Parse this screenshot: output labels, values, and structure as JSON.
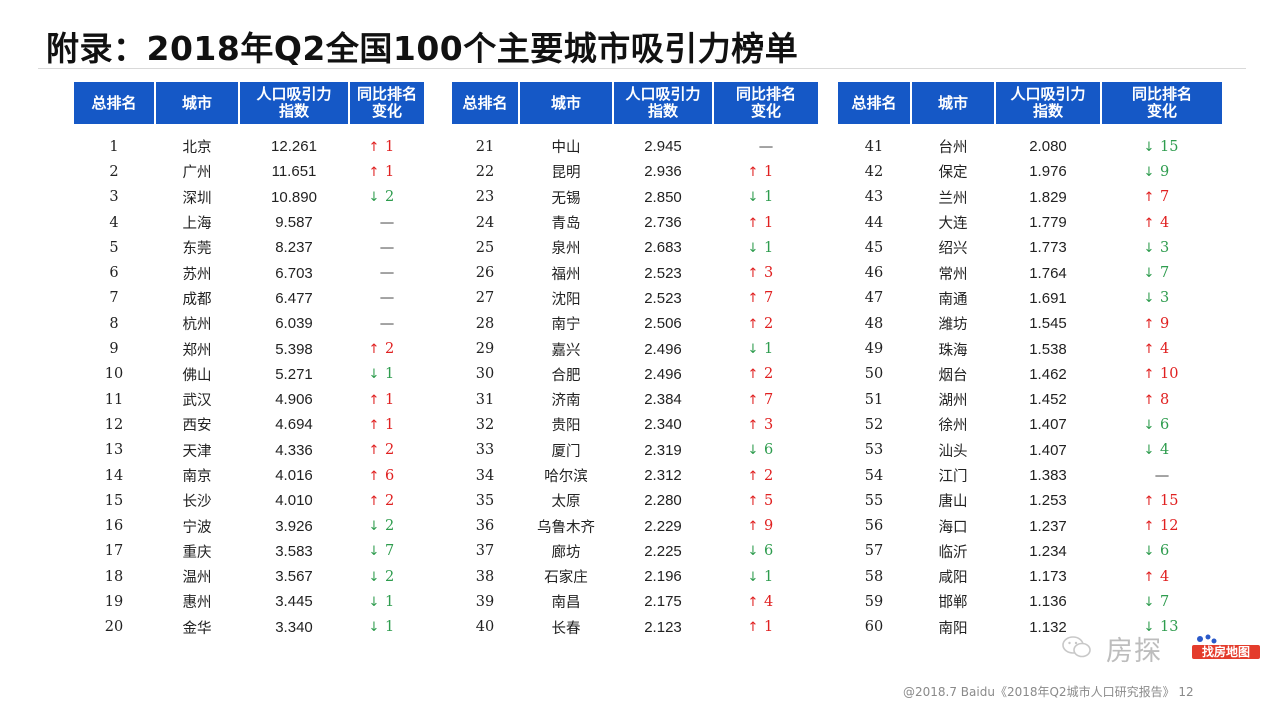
{
  "page": {
    "title": "附录：2018年Q2全国100个主要城市吸引力榜单",
    "footer": "@2018.7 Baidu《2018年Q2城市人口研究报告》 12",
    "watermark": {
      "text": "房探",
      "badge": "找房地图"
    }
  },
  "table": {
    "headers": {
      "rank": "总排名",
      "city": "城市",
      "index_line1": "人口吸引力",
      "index_line2": "指数",
      "change_line1": "同比排名",
      "change_line2": "变化"
    },
    "columns": [
      [
        {
          "rank": "1",
          "city": "北京",
          "index": "12.261",
          "dir": "up",
          "change": "1"
        },
        {
          "rank": "2",
          "city": "广州",
          "index": "11.651",
          "dir": "up",
          "change": "1"
        },
        {
          "rank": "3",
          "city": "深圳",
          "index": "10.890",
          "dir": "down",
          "change": "2"
        },
        {
          "rank": "4",
          "city": "上海",
          "index": "9.587",
          "dir": "flat",
          "change": "—"
        },
        {
          "rank": "5",
          "city": "东莞",
          "index": "8.237",
          "dir": "flat",
          "change": "—"
        },
        {
          "rank": "6",
          "city": "苏州",
          "index": "6.703",
          "dir": "flat",
          "change": "—"
        },
        {
          "rank": "7",
          "city": "成都",
          "index": "6.477",
          "dir": "flat",
          "change": "—"
        },
        {
          "rank": "8",
          "city": "杭州",
          "index": "6.039",
          "dir": "flat",
          "change": "—"
        },
        {
          "rank": "9",
          "city": "郑州",
          "index": "5.398",
          "dir": "up",
          "change": "2"
        },
        {
          "rank": "10",
          "city": "佛山",
          "index": "5.271",
          "dir": "down",
          "change": "1"
        },
        {
          "rank": "11",
          "city": "武汉",
          "index": "4.906",
          "dir": "up",
          "change": "1"
        },
        {
          "rank": "12",
          "city": "西安",
          "index": "4.694",
          "dir": "up",
          "change": "1"
        },
        {
          "rank": "13",
          "city": "天津",
          "index": "4.336",
          "dir": "up",
          "change": "2"
        },
        {
          "rank": "14",
          "city": "南京",
          "index": "4.016",
          "dir": "up",
          "change": "6"
        },
        {
          "rank": "15",
          "city": "长沙",
          "index": "4.010",
          "dir": "up",
          "change": "2"
        },
        {
          "rank": "16",
          "city": "宁波",
          "index": "3.926",
          "dir": "down",
          "change": "2"
        },
        {
          "rank": "17",
          "city": "重庆",
          "index": "3.583",
          "dir": "down",
          "change": "7"
        },
        {
          "rank": "18",
          "city": "温州",
          "index": "3.567",
          "dir": "down",
          "change": "2"
        },
        {
          "rank": "19",
          "city": "惠州",
          "index": "3.445",
          "dir": "down",
          "change": "1"
        },
        {
          "rank": "20",
          "city": "金华",
          "index": "3.340",
          "dir": "down",
          "change": "1"
        }
      ],
      [
        {
          "rank": "21",
          "city": "中山",
          "index": "2.945",
          "dir": "flat",
          "change": "—"
        },
        {
          "rank": "22",
          "city": "昆明",
          "index": "2.936",
          "dir": "up",
          "change": "1"
        },
        {
          "rank": "23",
          "city": "无锡",
          "index": "2.850",
          "dir": "down",
          "change": "1"
        },
        {
          "rank": "24",
          "city": "青岛",
          "index": "2.736",
          "dir": "up",
          "change": "1"
        },
        {
          "rank": "25",
          "city": "泉州",
          "index": "2.683",
          "dir": "down",
          "change": "1"
        },
        {
          "rank": "26",
          "city": "福州",
          "index": "2.523",
          "dir": "up",
          "change": "3"
        },
        {
          "rank": "27",
          "city": "沈阳",
          "index": "2.523",
          "dir": "up",
          "change": "7"
        },
        {
          "rank": "28",
          "city": "南宁",
          "index": "2.506",
          "dir": "up",
          "change": "2"
        },
        {
          "rank": "29",
          "city": "嘉兴",
          "index": "2.496",
          "dir": "down",
          "change": "1"
        },
        {
          "rank": "30",
          "city": "合肥",
          "index": "2.496",
          "dir": "up",
          "change": "2"
        },
        {
          "rank": "31",
          "city": "济南",
          "index": "2.384",
          "dir": "up",
          "change": "7"
        },
        {
          "rank": "32",
          "city": "贵阳",
          "index": "2.340",
          "dir": "up",
          "change": "3"
        },
        {
          "rank": "33",
          "city": "厦门",
          "index": "2.319",
          "dir": "down",
          "change": "6"
        },
        {
          "rank": "34",
          "city": "哈尔滨",
          "index": "2.312",
          "dir": "up",
          "change": "2"
        },
        {
          "rank": "35",
          "city": "太原",
          "index": "2.280",
          "dir": "up",
          "change": "5"
        },
        {
          "rank": "36",
          "city": "乌鲁木齐",
          "index": "2.229",
          "dir": "up",
          "change": "9"
        },
        {
          "rank": "37",
          "city": "廊坊",
          "index": "2.225",
          "dir": "down",
          "change": "6"
        },
        {
          "rank": "38",
          "city": "石家庄",
          "index": "2.196",
          "dir": "down",
          "change": "1"
        },
        {
          "rank": "39",
          "city": "南昌",
          "index": "2.175",
          "dir": "up",
          "change": "4"
        },
        {
          "rank": "40",
          "city": "长春",
          "index": "2.123",
          "dir": "up",
          "change": "1"
        }
      ],
      [
        {
          "rank": "41",
          "city": "台州",
          "index": "2.080",
          "dir": "down",
          "change": "15"
        },
        {
          "rank": "42",
          "city": "保定",
          "index": "1.976",
          "dir": "down",
          "change": "9"
        },
        {
          "rank": "43",
          "city": "兰州",
          "index": "1.829",
          "dir": "up",
          "change": "7"
        },
        {
          "rank": "44",
          "city": "大连",
          "index": "1.779",
          "dir": "up",
          "change": "4"
        },
        {
          "rank": "45",
          "city": "绍兴",
          "index": "1.773",
          "dir": "down",
          "change": "3"
        },
        {
          "rank": "46",
          "city": "常州",
          "index": "1.764",
          "dir": "down",
          "change": "7"
        },
        {
          "rank": "47",
          "city": "南通",
          "index": "1.691",
          "dir": "down",
          "change": "3"
        },
        {
          "rank": "48",
          "city": "潍坊",
          "index": "1.545",
          "dir": "up",
          "change": "9"
        },
        {
          "rank": "49",
          "city": "珠海",
          "index": "1.538",
          "dir": "up",
          "change": "4"
        },
        {
          "rank": "50",
          "city": "烟台",
          "index": "1.462",
          "dir": "up",
          "change": "10"
        },
        {
          "rank": "51",
          "city": "湖州",
          "index": "1.452",
          "dir": "up",
          "change": "8"
        },
        {
          "rank": "52",
          "city": "徐州",
          "index": "1.407",
          "dir": "down",
          "change": "6"
        },
        {
          "rank": "53",
          "city": "汕头",
          "index": "1.407",
          "dir": "down",
          "change": "4"
        },
        {
          "rank": "54",
          "city": "江门",
          "index": "1.383",
          "dir": "flat",
          "change": "—"
        },
        {
          "rank": "55",
          "city": "唐山",
          "index": "1.253",
          "dir": "up",
          "change": "15"
        },
        {
          "rank": "56",
          "city": "海口",
          "index": "1.237",
          "dir": "up",
          "change": "12"
        },
        {
          "rank": "57",
          "city": "临沂",
          "index": "1.234",
          "dir": "down",
          "change": "6"
        },
        {
          "rank": "58",
          "city": "咸阳",
          "index": "1.173",
          "dir": "up",
          "change": "4"
        },
        {
          "rank": "59",
          "city": "邯郸",
          "index": "1.136",
          "dir": "down",
          "change": "7"
        },
        {
          "rank": "60",
          "city": "南阳",
          "index": "1.132",
          "dir": "down",
          "change": "13"
        }
      ]
    ]
  },
  "colors": {
    "header_bg": "#1558c6",
    "up": "#e02020",
    "down": "#2e9c4e"
  },
  "icons": {
    "up": "arrow-up-icon",
    "down": "arrow-down-icon",
    "watermark": "wechat-icon"
  }
}
